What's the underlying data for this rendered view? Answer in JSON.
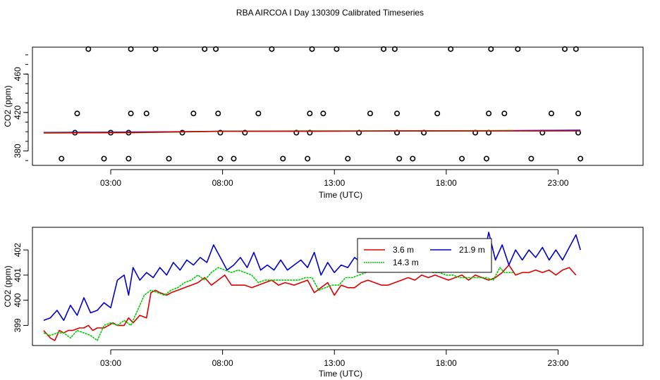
{
  "title": "RBA AIRCOA I  Day 130309  Calibrated Timeseries",
  "colors": {
    "red": "#dd0000",
    "green": "#00cc00",
    "blue": "#0000cc",
    "black": "#000000",
    "purple": "#aa00aa"
  },
  "chart_data": [
    {
      "type": "scatter",
      "xlabel": "Time (UTC)",
      "ylabel": "CO2 (ppm)",
      "xlim": [
        -0.5,
        26.8
      ],
      "ylim": [
        365,
        488
      ],
      "xticks": [
        3,
        8,
        13,
        18,
        23
      ],
      "xtick_labels": [
        "03:00",
        "08:00",
        "13:00",
        "18:00",
        "23:00"
      ],
      "yticks": [
        380,
        420,
        460
      ],
      "ytick_labels": [
        "380",
        "420",
        "460"
      ],
      "grid": false,
      "series": [
        {
          "color": "#000000",
          "marker": "open-circle",
          "points": [
            [
              0.8,
              372
            ],
            [
              1.4,
              399
            ],
            [
              2.0,
              486
            ],
            [
              1.5,
              419
            ],
            [
              2.7,
              372
            ],
            [
              3.0,
              399
            ],
            [
              3.8,
              372
            ],
            [
              3.8,
              399
            ],
            [
              3.9,
              419
            ],
            [
              3.9,
              486
            ],
            [
              4.6,
              419
            ],
            [
              5.0,
              486
            ],
            [
              5.6,
              372
            ],
            [
              6.2,
              399
            ],
            [
              6.7,
              419
            ],
            [
              7.2,
              486
            ],
            [
              7.7,
              486
            ],
            [
              7.8,
              419
            ],
            [
              7.9,
              399
            ],
            [
              7.9,
              372
            ],
            [
              8.5,
              372
            ],
            [
              9.0,
              399
            ],
            [
              9.6,
              419
            ],
            [
              10.2,
              486
            ],
            [
              10.7,
              372
            ],
            [
              11.3,
              399
            ],
            [
              11.8,
              372
            ],
            [
              11.9,
              399
            ],
            [
              11.9,
              419
            ],
            [
              12.0,
              486
            ],
            [
              12.5,
              419
            ],
            [
              13.1,
              486
            ],
            [
              13.6,
              372
            ],
            [
              14.1,
              399
            ],
            [
              14.6,
              419
            ],
            [
              15.2,
              486
            ],
            [
              15.7,
              486
            ],
            [
              15.8,
              419
            ],
            [
              15.8,
              399
            ],
            [
              15.9,
              372
            ],
            [
              16.5,
              372
            ],
            [
              17.0,
              399
            ],
            [
              17.6,
              419
            ],
            [
              18.2,
              486
            ],
            [
              18.7,
              372
            ],
            [
              19.3,
              399
            ],
            [
              19.8,
              372
            ],
            [
              19.9,
              399
            ],
            [
              19.9,
              419
            ],
            [
              20.0,
              486
            ],
            [
              20.6,
              419
            ],
            [
              21.2,
              486
            ],
            [
              21.8,
              372
            ],
            [
              22.3,
              399
            ],
            [
              22.7,
              419
            ],
            [
              23.3,
              486
            ],
            [
              23.8,
              486
            ],
            [
              23.9,
              419
            ],
            [
              23.9,
              399
            ],
            [
              24.0,
              372
            ]
          ]
        },
        {
          "color": "#0000cc",
          "marker": "line",
          "x": [
            0.0,
            4.0,
            8.0,
            12.0,
            16.0,
            20.0,
            24.0
          ],
          "values": [
            399.2,
            399.6,
            400.4,
            400.6,
            400.8,
            401.0,
            401.6
          ]
        },
        {
          "color": "#00cc00",
          "marker": "line",
          "x": [
            0.0,
            4.0,
            8.0,
            12.0,
            16.0,
            20.0,
            21.0
          ],
          "values": [
            398.8,
            399.0,
            400.4,
            400.8,
            400.9,
            401.1,
            401.2
          ]
        },
        {
          "color": "#dd0000",
          "marker": "line",
          "x": [
            0.0,
            4.0,
            8.0,
            12.0,
            16.0,
            20.0,
            24.0
          ],
          "values": [
            398.7,
            399.2,
            400.5,
            400.6,
            400.8,
            400.8,
            400.9
          ]
        }
      ]
    },
    {
      "type": "line",
      "xlabel": "Time (UTC)",
      "ylabel": "CO2 (ppm)",
      "xlim": [
        -0.5,
        26.8
      ],
      "ylim": [
        398.2,
        402.9
      ],
      "xticks": [
        3,
        8,
        13,
        18,
        23
      ],
      "xtick_labels": [
        "03:00",
        "08:00",
        "13:00",
        "18:00",
        "23:00"
      ],
      "yticks": [
        399,
        400,
        401,
        402
      ],
      "ytick_labels": [
        "399",
        "400",
        "401",
        "402"
      ],
      "grid": false,
      "legend": {
        "placement": "top-center",
        "entries": [
          "3.6 m",
          "21.9 m",
          "14.3 m"
        ]
      },
      "series": [
        {
          "name": "3.6 m",
          "color": "#dd0000",
          "x": [
            0.0,
            0.3,
            0.5,
            0.7,
            0.9,
            1.1,
            1.3,
            1.6,
            1.8,
            2.0,
            2.2,
            2.4,
            2.7,
            2.9,
            3.1,
            3.3,
            3.6,
            3.8,
            4.0,
            4.3,
            4.6,
            4.8,
            5.0,
            5.2,
            5.5,
            5.7,
            6.0,
            6.3,
            6.6,
            6.9,
            7.2,
            7.5,
            7.8,
            8.1,
            8.4,
            8.7,
            9.0,
            9.3,
            9.6,
            9.9,
            10.2,
            10.5,
            10.8,
            11.2,
            11.5,
            11.8,
            12.1,
            12.4,
            12.7,
            13.0,
            13.3,
            13.6,
            13.9,
            14.2,
            14.5,
            14.8,
            15.1,
            15.4,
            15.7,
            16.0,
            16.3,
            16.6,
            16.9,
            17.2,
            17.5,
            17.8,
            18.1,
            18.4,
            18.7,
            19.0,
            19.3,
            19.6,
            19.9,
            20.2,
            20.5,
            20.8,
            21.1,
            21.4,
            21.7,
            22.0,
            22.3,
            22.6,
            22.9,
            23.2,
            23.5,
            23.8
          ],
          "values": [
            398.8,
            398.5,
            398.4,
            398.8,
            398.7,
            398.8,
            398.8,
            398.9,
            398.9,
            399.0,
            398.8,
            398.9,
            398.9,
            399.0,
            399.1,
            399.0,
            399.0,
            399.3,
            399.1,
            399.4,
            399.3,
            400.3,
            400.4,
            400.3,
            400.2,
            400.3,
            400.4,
            400.5,
            400.6,
            400.7,
            400.9,
            400.6,
            400.8,
            401.0,
            400.6,
            400.6,
            400.6,
            400.5,
            400.6,
            400.7,
            400.8,
            400.6,
            400.7,
            400.6,
            400.7,
            400.8,
            400.3,
            400.5,
            400.7,
            400.2,
            400.6,
            400.5,
            400.5,
            400.7,
            400.8,
            400.7,
            400.6,
            400.6,
            400.7,
            400.8,
            400.9,
            400.8,
            401.0,
            400.9,
            401.0,
            400.9,
            400.8,
            400.9,
            401.0,
            400.8,
            401.0,
            400.9,
            400.8,
            400.9,
            401.1,
            401.4,
            401.0,
            401.1,
            401.1,
            401.2,
            401.1,
            401.2,
            401.0,
            401.2,
            401.3,
            401.0
          ]
        },
        {
          "name": "21.9 m",
          "color": "#0000cc",
          "x": [
            0.0,
            0.3,
            0.6,
            0.9,
            1.2,
            1.5,
            1.8,
            2.1,
            2.4,
            2.7,
            3.0,
            3.3,
            3.6,
            3.8,
            4.0,
            4.3,
            4.6,
            4.9,
            5.2,
            5.5,
            5.8,
            6.1,
            6.4,
            6.7,
            7.0,
            7.3,
            7.6,
            7.9,
            8.2,
            8.5,
            8.8,
            9.1,
            9.4,
            9.7,
            10.0,
            10.3,
            10.6,
            10.9,
            11.2,
            11.5,
            11.8,
            12.1,
            12.4,
            12.7,
            13.0,
            13.3,
            13.6,
            13.9,
            14.2,
            14.5,
            14.8,
            15.1,
            15.4,
            15.7,
            16.0,
            16.3,
            16.6,
            16.9,
            17.2,
            17.5,
            17.8,
            18.1,
            18.4,
            18.7,
            19.0,
            19.3,
            19.6,
            19.9,
            20.2,
            20.5,
            20.8,
            21.1,
            21.4,
            21.7,
            22.0,
            22.3,
            22.6,
            22.9,
            23.2,
            23.5,
            23.8,
            24.0
          ],
          "values": [
            399.2,
            399.3,
            399.6,
            399.2,
            399.8,
            399.4,
            400.1,
            399.5,
            399.6,
            399.9,
            399.7,
            400.8,
            401.0,
            400.2,
            401.3,
            400.8,
            401.1,
            400.9,
            401.3,
            401.0,
            401.5,
            401.2,
            401.6,
            401.4,
            401.7,
            401.5,
            402.2,
            401.7,
            401.2,
            401.4,
            401.7,
            401.3,
            401.9,
            401.2,
            401.4,
            401.2,
            401.6,
            401.2,
            401.4,
            401.6,
            401.3,
            401.9,
            401.0,
            401.5,
            401.1,
            401.4,
            401.3,
            401.7,
            401.5,
            401.6,
            401.4,
            401.8,
            401.2,
            401.6,
            401.4,
            401.9,
            401.5,
            402.0,
            401.6,
            401.8,
            401.3,
            401.6,
            401.4,
            401.9,
            401.5,
            401.8,
            401.4,
            402.7,
            401.6,
            402.2,
            401.4,
            402.0,
            401.6,
            402.0,
            401.7,
            402.1,
            401.6,
            402.0,
            401.6,
            402.1,
            402.6,
            402.0
          ]
        },
        {
          "name": "14.3 m",
          "color": "#00cc00",
          "x": [
            0.0,
            0.3,
            0.6,
            0.9,
            1.2,
            1.5,
            1.8,
            2.1,
            2.4,
            2.7,
            3.0,
            3.3,
            3.6,
            3.9,
            4.2,
            4.5,
            4.8,
            5.1,
            5.4,
            5.7,
            6.0,
            6.3,
            6.6,
            6.9,
            7.2,
            7.5,
            7.8,
            8.1,
            8.4,
            8.7,
            9.0,
            9.3,
            9.6,
            9.9,
            10.2,
            10.5,
            10.8,
            11.1,
            11.4,
            11.7,
            12.0,
            12.3,
            12.6,
            12.9,
            13.2,
            13.5,
            13.8,
            14.1,
            14.4,
            14.7,
            15.0,
            15.3,
            15.6,
            15.9,
            16.2,
            16.5,
            16.8,
            17.1,
            17.4,
            17.7,
            18.0,
            18.3,
            18.6,
            18.9,
            19.2,
            19.5,
            19.8,
            20.1,
            20.4,
            20.6,
            21.0
          ],
          "values": [
            398.7,
            398.6,
            398.7,
            398.7,
            398.5,
            398.8,
            398.7,
            398.6,
            398.4,
            399.0,
            399.1,
            399.0,
            399.2,
            399.0,
            399.6,
            400.2,
            400.4,
            400.3,
            400.2,
            400.4,
            400.5,
            400.7,
            400.8,
            401.0,
            400.8,
            401.1,
            401.3,
            401.2,
            401.1,
            401.2,
            401.1,
            401.0,
            400.7,
            400.8,
            400.8,
            400.8,
            400.8,
            400.8,
            400.8,
            400.9,
            400.9,
            400.4,
            400.5,
            400.6,
            400.6,
            400.9,
            400.9,
            401.0,
            401.1,
            401.2,
            401.2,
            401.3,
            401.3,
            401.3,
            401.4,
            401.5,
            401.5,
            401.3,
            401.1,
            401.1,
            401.0,
            401.0,
            400.9,
            400.9,
            400.9,
            400.9,
            400.9,
            400.8,
            401.3,
            401.1,
            401.1
          ]
        }
      ]
    }
  ]
}
